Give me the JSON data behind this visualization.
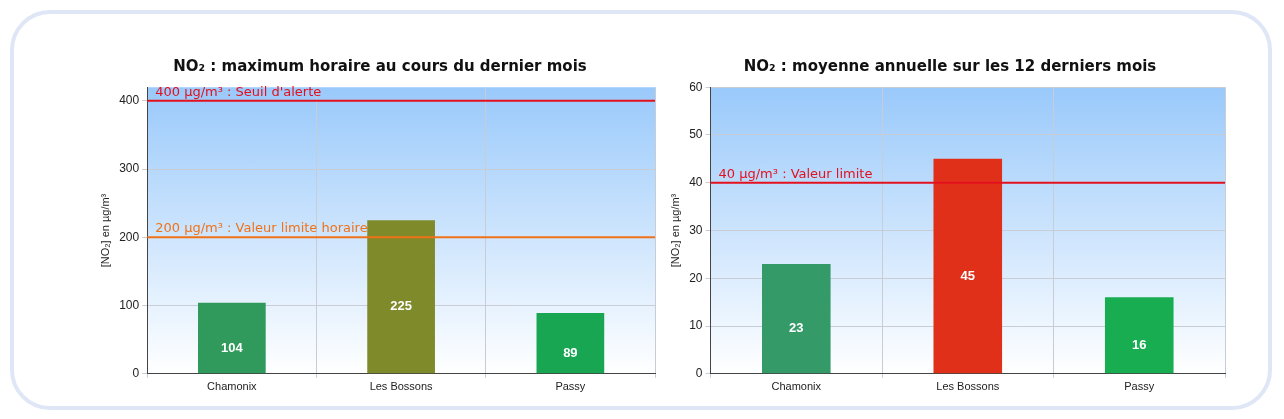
{
  "chart_data": [
    {
      "type": "bar",
      "title": "NO₂ : maximum horaire au cours du dernier mois",
      "ylabel": "[NO₂] en µg/m³",
      "categories": [
        "Chamonix",
        "Les Bossons",
        "Passy"
      ],
      "values": [
        104,
        225,
        89
      ],
      "colors": [
        "#2f9a5c",
        "#7f8a2a",
        "#19a653"
      ],
      "ylim": [
        0,
        420
      ],
      "yticks": [
        0,
        100,
        200,
        300,
        400
      ],
      "grid": true,
      "data_labels": true,
      "ref_lines": [
        {
          "axis": "y",
          "value": 400,
          "label": "400 µg/m³ : Seuil d'alerte",
          "color": "#e3101e"
        },
        {
          "axis": "y",
          "value": 200,
          "label": "200 µg/m³ : Valeur limite horaire",
          "color": "#f07218"
        }
      ]
    },
    {
      "type": "bar",
      "title": "NO₂ : moyenne annuelle sur les 12 derniers mois",
      "ylabel": "[NO₂] en µg/m³",
      "categories": [
        "Chamonix",
        "Les Bossons",
        "Passy"
      ],
      "values": [
        23,
        45,
        16
      ],
      "colors": [
        "#339a68",
        "#e0301a",
        "#19ad52"
      ],
      "ylim": [
        0,
        60
      ],
      "yticks": [
        0,
        10,
        20,
        30,
        40,
        50,
        60
      ],
      "grid": true,
      "data_labels": true,
      "ref_lines": [
        {
          "axis": "y",
          "value": 40,
          "label": "40 µg/m³ : Valeur limite",
          "color": "#e3101e"
        }
      ]
    }
  ]
}
